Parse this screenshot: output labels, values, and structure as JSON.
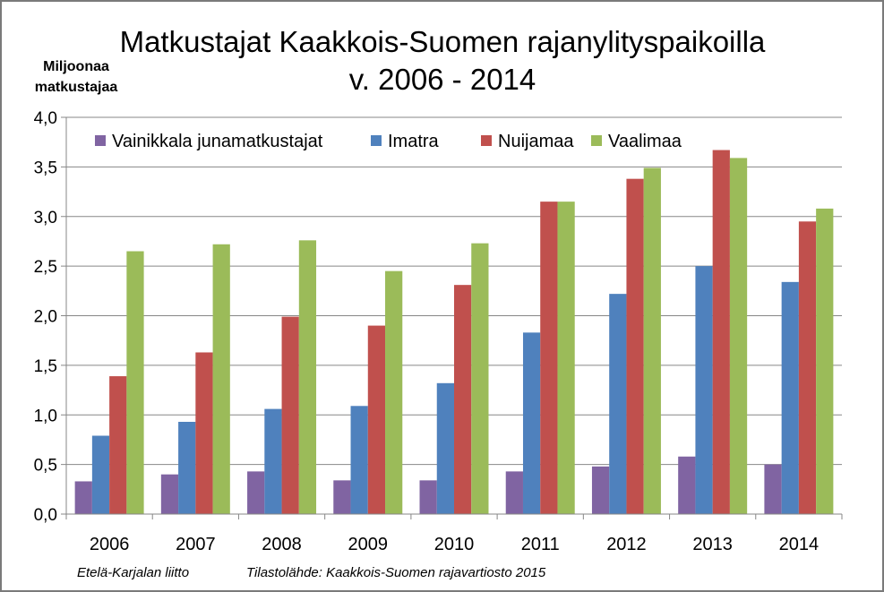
{
  "chart_data": {
    "type": "bar",
    "title": [
      "Matkustajat Kaakkois-Suomen rajanylityspaikoilla",
      "v. 2006 - 2014"
    ],
    "ylabel": [
      "Miljoonaa",
      "matkustajaa"
    ],
    "xlabel": "",
    "ylim": [
      0,
      4.0
    ],
    "ytick_values": [
      0,
      0.5,
      1.0,
      1.5,
      2.0,
      2.5,
      3.0,
      3.5,
      4.0
    ],
    "ytick_labels": [
      "0,0",
      "0,5",
      "1,0",
      "1,5",
      "2,0",
      "2,5",
      "3,0",
      "3,5",
      "4,0"
    ],
    "grid": true,
    "legend_position": "top",
    "categories": [
      "2006",
      "2007",
      "2008",
      "2009",
      "2010",
      "2011",
      "2012",
      "2013",
      "2014"
    ],
    "series": [
      {
        "name": "Vainikkala junamatkustajat",
        "color": "#8064a2",
        "values": [
          0.33,
          0.4,
          0.43,
          0.34,
          0.34,
          0.43,
          0.48,
          0.58,
          0.5
        ]
      },
      {
        "name": "Imatra",
        "color": "#4f81bd",
        "values": [
          0.79,
          0.93,
          1.06,
          1.09,
          1.32,
          1.83,
          2.22,
          2.5,
          2.34
        ]
      },
      {
        "name": "Nuijamaa",
        "color": "#c0504d",
        "values": [
          1.39,
          1.63,
          1.99,
          1.9,
          2.31,
          3.15,
          3.38,
          3.67,
          2.95
        ]
      },
      {
        "name": "Vaalimaa",
        "color": "#9bbb59",
        "values": [
          2.65,
          2.72,
          2.76,
          2.45,
          2.73,
          3.15,
          3.49,
          3.59,
          3.08
        ]
      }
    ]
  },
  "footer": {
    "source_left": "Etelä-Karjalan liitto",
    "source_right": "Tilastolähde: Kaakkois-Suomen rajavartiosto 2015"
  }
}
